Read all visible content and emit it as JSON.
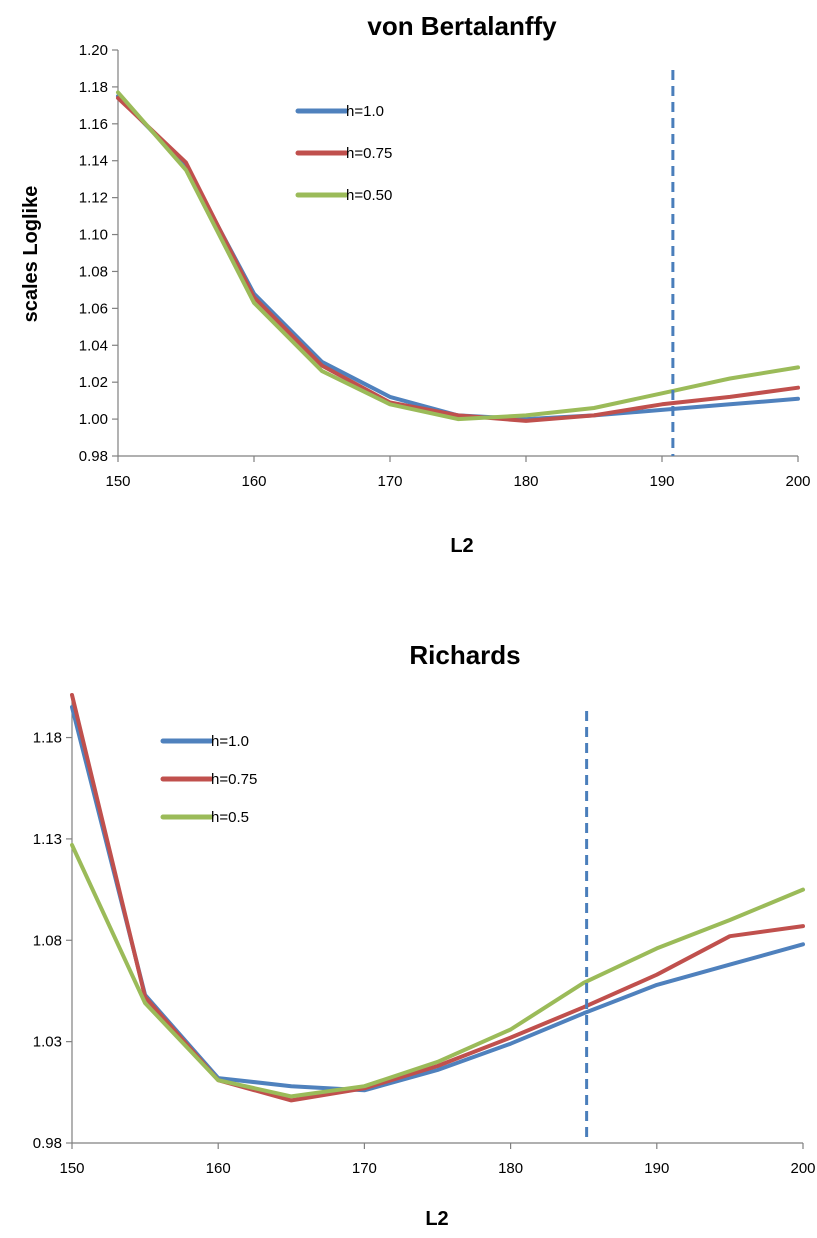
{
  "chart_data": [
    {
      "type": "line",
      "title": "von Bertalanffy",
      "xlabel": "L2",
      "ylabel": "scales Loglike",
      "xlim": [
        150,
        200
      ],
      "ylim": [
        0.98,
        1.2
      ],
      "x_ticks": [
        "150",
        "160",
        "170",
        "180",
        "190",
        "200"
      ],
      "y_ticks": [
        "0.98",
        "1.00",
        "1.02",
        "1.04",
        "1.06",
        "1.08",
        "1.10",
        "1.12",
        "1.14",
        "1.16",
        "1.18",
        "1.20"
      ],
      "grid": false,
      "legend_position": "top-center",
      "reference_line_x": 190.8,
      "x": [
        150,
        155,
        160,
        165,
        170,
        175,
        180,
        185,
        190,
        195,
        200
      ],
      "series": [
        {
          "name": "h=1.0",
          "color": "#4f81bd",
          "values": [
            1.175,
            1.137,
            1.068,
            1.031,
            1.012,
            1.002,
            1.0,
            1.002,
            1.005,
            1.008,
            1.011
          ]
        },
        {
          "name": "h=0.75",
          "color": "#c0504d",
          "values": [
            1.174,
            1.139,
            1.066,
            1.029,
            1.009,
            1.002,
            0.999,
            1.002,
            1.008,
            1.012,
            1.017
          ]
        },
        {
          "name": "h=0.50",
          "color": "#9bbb59",
          "values": [
            1.177,
            1.135,
            1.063,
            1.026,
            1.008,
            1.0,
            1.002,
            1.006,
            1.014,
            1.022,
            1.028
          ]
        }
      ]
    },
    {
      "type": "line",
      "title": "Richards",
      "xlabel": "L2",
      "ylabel": "",
      "xlim": [
        150,
        200
      ],
      "ylim": [
        0.98,
        1.2
      ],
      "x_ticks": [
        "150",
        "160",
        "170",
        "180",
        "190",
        "200"
      ],
      "y_ticks": [
        "0.98",
        "1.03",
        "1.08",
        "1.13",
        "1.18"
      ],
      "grid": false,
      "legend_position": "top-left",
      "reference_line_x": 185.2,
      "x": [
        150,
        155,
        160,
        165,
        170,
        175,
        180,
        185,
        190,
        195,
        200
      ],
      "series": [
        {
          "name": "h=1.0",
          "color": "#4f81bd",
          "values": [
            1.195,
            1.053,
            1.012,
            1.008,
            1.006,
            1.016,
            1.029,
            1.044,
            1.058,
            1.068,
            1.078
          ]
        },
        {
          "name": "h=0.75",
          "color": "#c0504d",
          "values": [
            1.201,
            1.052,
            1.011,
            1.001,
            1.007,
            1.018,
            1.032,
            1.047,
            1.063,
            1.082,
            1.087
          ]
        },
        {
          "name": "h=0.5",
          "color": "#9bbb59",
          "values": [
            1.127,
            1.049,
            1.011,
            1.003,
            1.008,
            1.02,
            1.036,
            1.059,
            1.076,
            1.09,
            1.105
          ]
        }
      ]
    }
  ]
}
